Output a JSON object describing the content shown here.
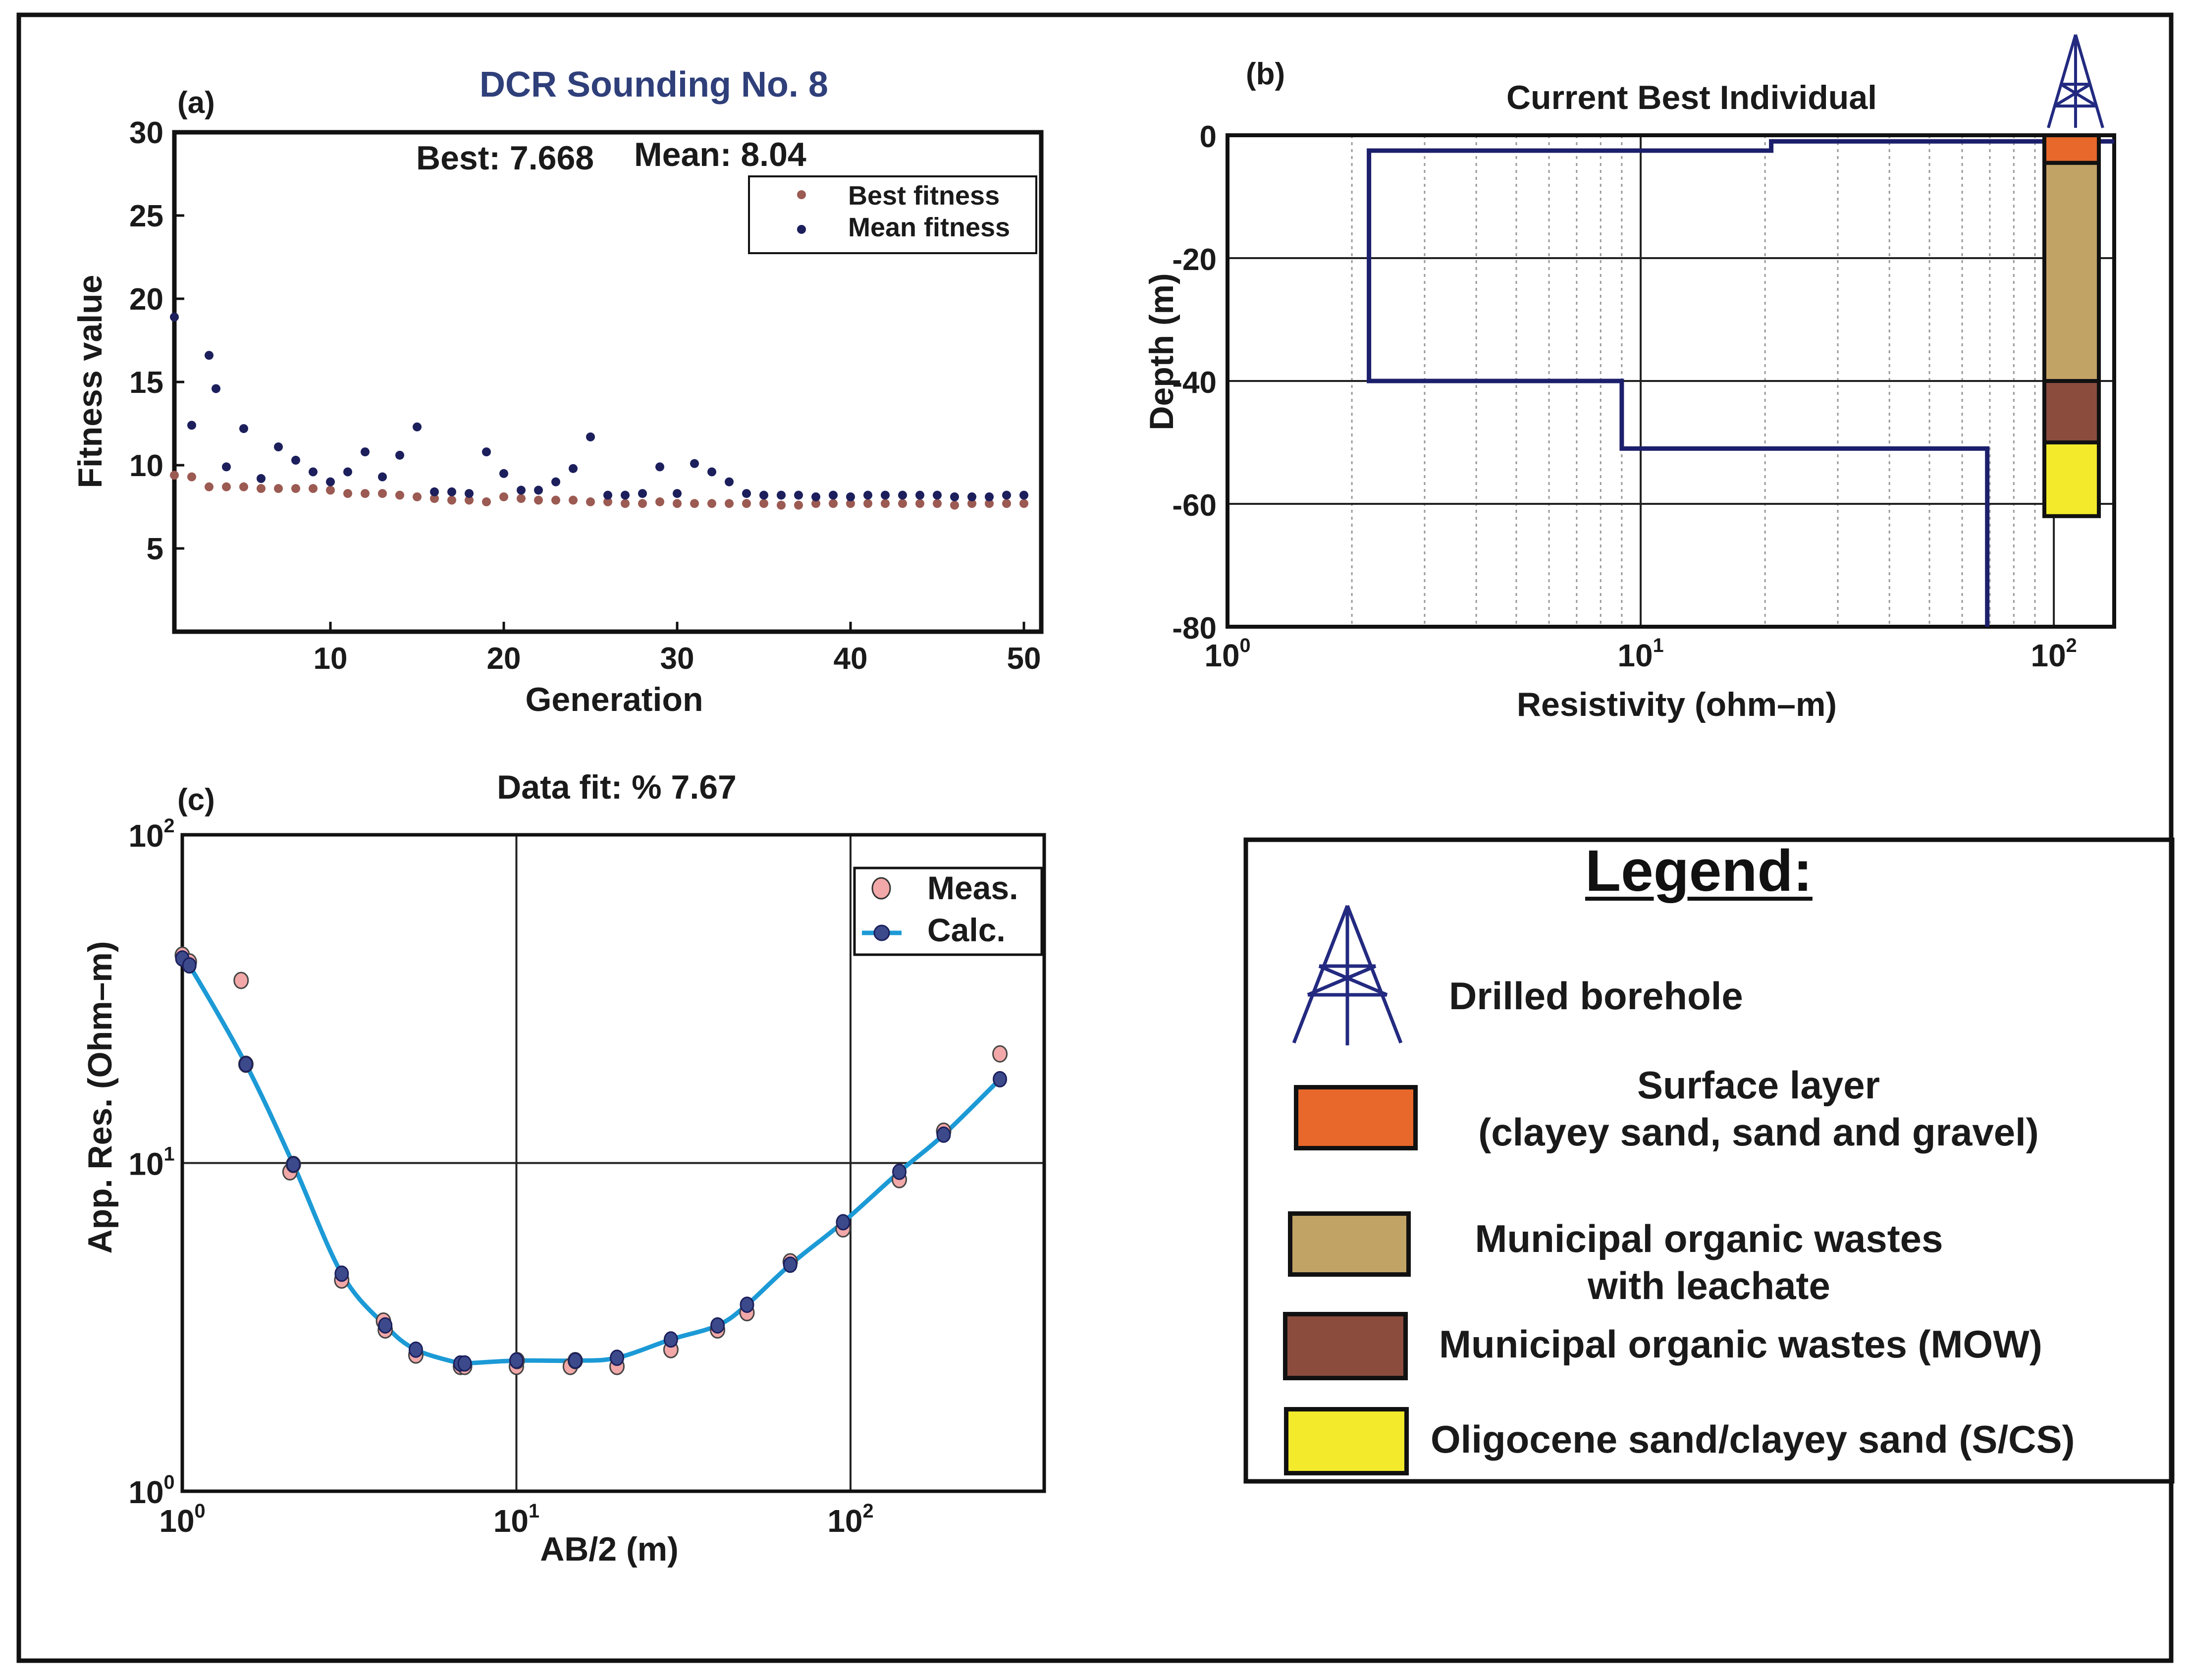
{
  "chart_data": [
    {
      "panel_label": "(a)",
      "type": "scatter",
      "title": "DCR Sounding No. 8",
      "annotation_best": "Best: 7.668",
      "annotation_mean": "Mean: 8.04",
      "xlabel": "Generation",
      "ylabel": "Fitness value",
      "xlim": [
        1,
        51
      ],
      "ylim": [
        0,
        30
      ],
      "xticks": [
        10,
        20,
        30,
        40,
        50
      ],
      "yticks": [
        5,
        10,
        15,
        20,
        25,
        30
      ],
      "legend_position": "top-right",
      "series": [
        {
          "name": "Best fitness",
          "color": "#9b5a52",
          "x": [
            1,
            2,
            3,
            4,
            5,
            6,
            7,
            8,
            9,
            10,
            11,
            12,
            13,
            14,
            15,
            16,
            17,
            18,
            19,
            20,
            21,
            22,
            23,
            24,
            25,
            26,
            27,
            28,
            29,
            30,
            31,
            32,
            33,
            34,
            35,
            36,
            37,
            38,
            39,
            40,
            41,
            42,
            43,
            44,
            45,
            46,
            47,
            48,
            49,
            50
          ],
          "y": [
            9.4,
            9.3,
            8.7,
            8.7,
            8.7,
            8.6,
            8.6,
            8.6,
            8.6,
            8.5,
            8.3,
            8.3,
            8.3,
            8.2,
            8.1,
            8.0,
            7.9,
            7.9,
            7.8,
            8.1,
            8.0,
            7.9,
            7.9,
            7.9,
            7.8,
            7.8,
            7.7,
            7.7,
            7.8,
            7.7,
            7.7,
            7.7,
            7.7,
            7.7,
            7.7,
            7.6,
            7.6,
            7.7,
            7.7,
            7.7,
            7.7,
            7.7,
            7.7,
            7.7,
            7.7,
            7.6,
            7.7,
            7.7,
            7.7,
            7.7
          ]
        },
        {
          "name": "Mean fitness",
          "color": "#1c1f5c",
          "x": [
            1,
            2,
            3,
            3.4,
            4,
            5,
            6,
            7,
            8,
            9,
            10,
            11,
            12,
            13,
            14,
            15,
            16,
            17,
            18,
            19,
            20,
            21,
            22,
            23,
            24,
            25,
            26,
            27,
            28,
            29,
            30,
            31,
            32,
            33,
            34,
            35,
            36,
            37,
            38,
            39,
            40,
            41,
            42,
            43,
            44,
            45,
            46,
            47,
            48,
            49,
            50
          ],
          "y": [
            18.9,
            12.4,
            16.6,
            14.6,
            9.9,
            12.2,
            9.2,
            11.1,
            10.3,
            9.6,
            9.0,
            9.6,
            10.8,
            9.3,
            10.6,
            12.3,
            8.4,
            8.4,
            8.3,
            10.8,
            9.5,
            8.5,
            8.5,
            9.0,
            9.8,
            11.7,
            8.2,
            8.2,
            8.3,
            9.9,
            8.3,
            10.1,
            9.6,
            9.0,
            8.3,
            8.2,
            8.2,
            8.2,
            8.1,
            8.2,
            8.1,
            8.2,
            8.2,
            8.2,
            8.2,
            8.2,
            8.1,
            8.1,
            8.1,
            8.2,
            8.2
          ]
        }
      ]
    },
    {
      "panel_label": "(b)",
      "type": "line",
      "title": "Current Best Individual",
      "xlabel": "Resistivity (ohm–m)",
      "ylabel": "Depth (m)",
      "xscale": "log",
      "xlim": [
        1,
        140
      ],
      "ylim": [
        -80,
        0
      ],
      "xticks": [
        "10",
        "10",
        "10"
      ],
      "xtick_exponents": [
        "0",
        "1",
        "2"
      ],
      "yticks": [
        "0",
        "-20",
        "-40",
        "-60",
        "-80"
      ],
      "model_steps": {
        "resistivity": [
          140,
          20.7,
          20.7,
          2.2,
          2.2,
          9.0,
          9.0,
          69,
          69
        ],
        "depth": [
          -1,
          -1,
          -2.5,
          -2.5,
          -40,
          -40,
          -51,
          -51,
          -80
        ]
      },
      "line_color": "#1c1f6b",
      "borehole_column": [
        {
          "layer": "surface",
          "top": 0,
          "bottom": -4.5,
          "color": "#e8672a"
        },
        {
          "layer": "wastes_leachate",
          "top": -4.5,
          "bottom": -40,
          "color": "#c2a366"
        },
        {
          "layer": "mow",
          "top": -40,
          "bottom": -50,
          "color": "#8b4c3e"
        },
        {
          "layer": "oligocene",
          "top": -50,
          "bottom": -62,
          "color": "#f2ea2a"
        }
      ]
    },
    {
      "panel_label": "(c)",
      "type": "line",
      "title": "Data fit: % 7.67",
      "xlabel": "AB/2 (m)",
      "ylabel": "App. Res. (Ohm–m)",
      "xscale": "log",
      "yscale": "log",
      "xlim": [
        1,
        380
      ],
      "ylim": [
        1,
        100
      ],
      "xticks": [
        "10",
        "10",
        "10"
      ],
      "xtick_exponents": [
        "0",
        "1",
        "2"
      ],
      "yticks": [
        "10",
        "10",
        "10"
      ],
      "ytick_exponents": [
        "0",
        "1",
        "2"
      ],
      "legend_position": "top-right",
      "series": [
        {
          "name": "Meas.",
          "color": "#f2a8a8",
          "x": [
            1.0,
            1.05,
            1.5,
            1.55,
            2.1,
            2.15,
            3.0,
            4.0,
            4.05,
            5.0,
            6.8,
            7.0,
            10.0,
            10.05,
            14.5,
            15.0,
            20.0,
            29.0,
            40.0,
            49.0,
            66.0,
            95.0,
            140.0,
            190.0,
            280.0
          ],
          "y": [
            43,
            41,
            36,
            20,
            9.4,
            9.9,
            4.4,
            3.3,
            3.1,
            2.6,
            2.4,
            2.4,
            2.4,
            2.5,
            2.4,
            2.5,
            2.4,
            2.7,
            3.1,
            3.5,
            5.0,
            6.3,
            8.9,
            12.5,
            21.5
          ]
        },
        {
          "name": "Calc.",
          "color": "#1c9ad6",
          "x": [
            1.0,
            1.05,
            1.55,
            2.15,
            3.0,
            4.05,
            5.0,
            6.8,
            7.0,
            10.0,
            15.0,
            20.0,
            29.0,
            40.0,
            49.0,
            66.0,
            95.0,
            140.0,
            190.0,
            280.0
          ],
          "y": [
            42,
            40,
            20,
            9.9,
            4.6,
            3.2,
            2.7,
            2.45,
            2.45,
            2.5,
            2.5,
            2.55,
            2.9,
            3.2,
            3.7,
            4.9,
            6.6,
            9.4,
            12.2,
            18.0
          ]
        }
      ]
    }
  ],
  "legend_box": {
    "title": "Legend:",
    "borehole_label": "Drilled borehole",
    "items": [
      {
        "line1": "Surface layer",
        "line2": "(clayey sand, sand and gravel)",
        "color": "#e8672a"
      },
      {
        "line1": "Municipal organic wastes",
        "line2": "with leachate",
        "color": "#c2a366"
      },
      {
        "line1": "Municipal organic wastes (MOW)",
        "line2": "",
        "color": "#8b4c3e"
      },
      {
        "line1": "Oligocene  sand/clayey sand (S/CS)",
        "line2": "",
        "color": "#f2ea2a"
      }
    ]
  },
  "colors": {
    "frame": "#111111",
    "title_blue": "#2f3f7a"
  }
}
